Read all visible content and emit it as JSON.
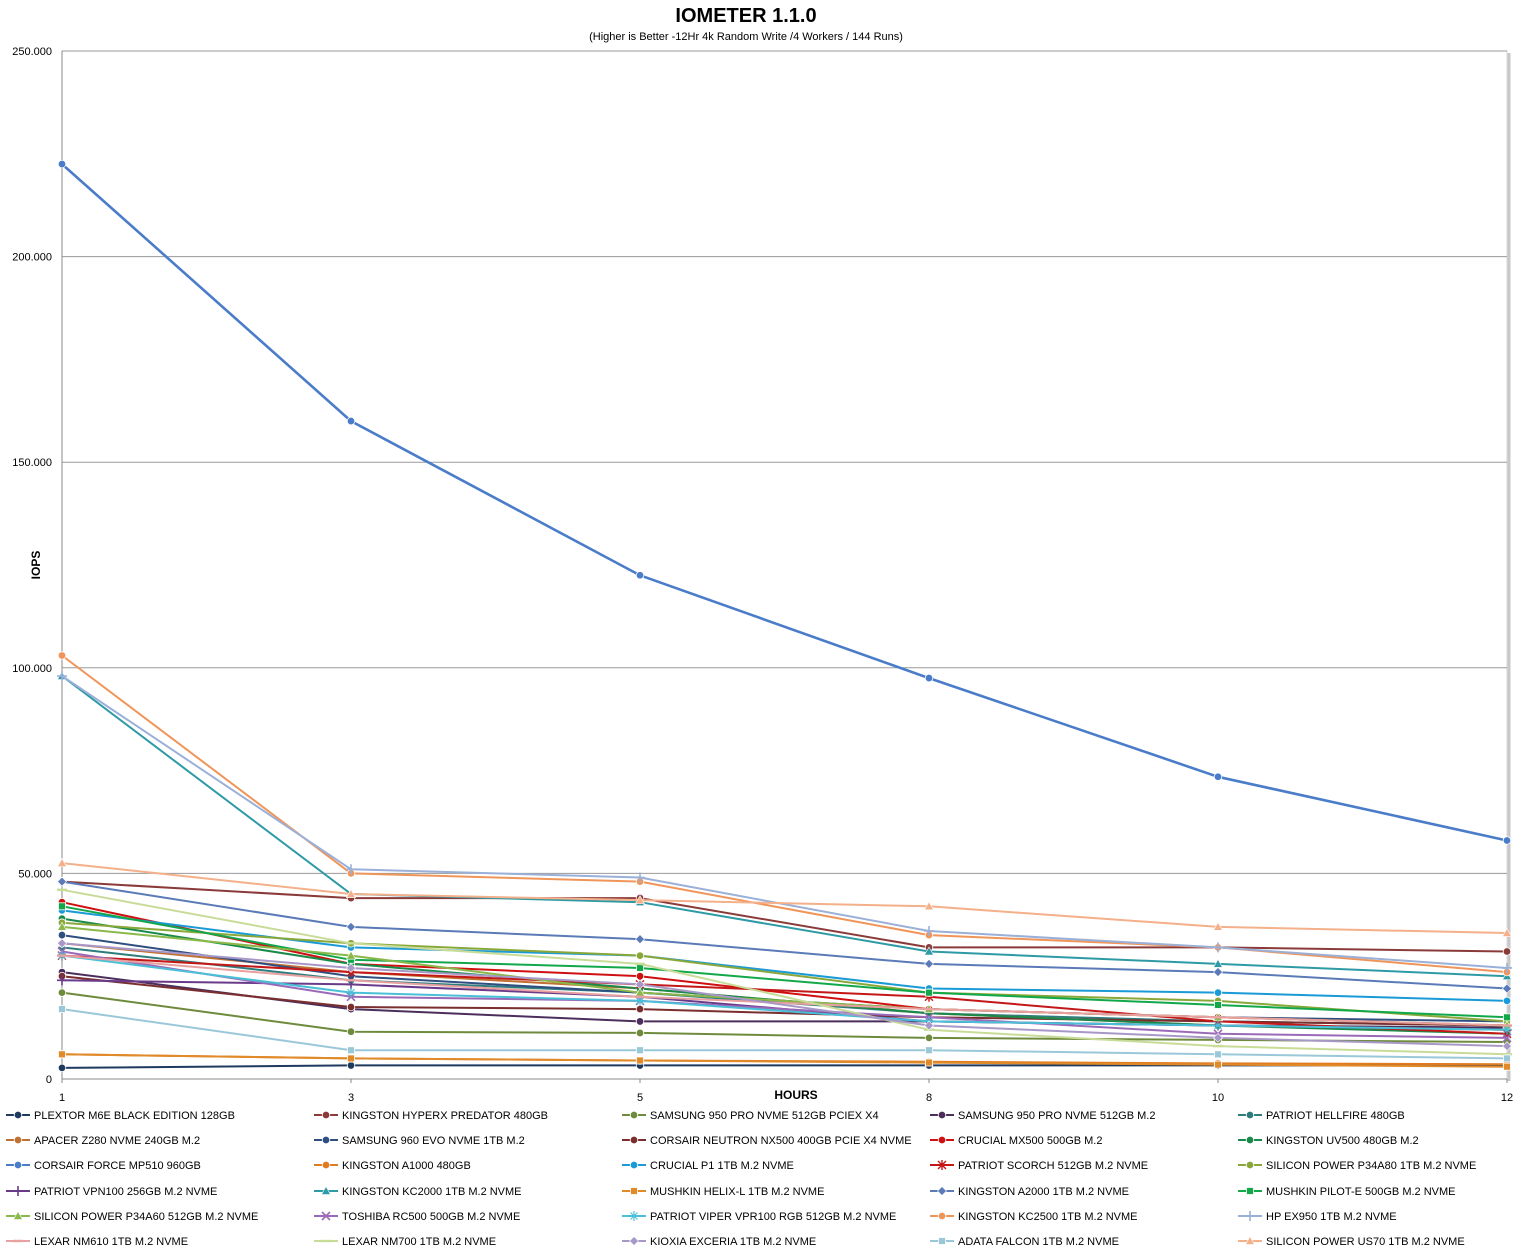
{
  "chart_data": {
    "type": "line",
    "title": "IOMETER 1.1.0",
    "subtitle": "(Higher is Better -12Hr 4k Random Write /4 Workers / 144 Runs)",
    "xlabel": "HOURS",
    "ylabel": "IOPS",
    "x": [
      "1",
      "3",
      "5",
      "8",
      "10",
      "12"
    ],
    "y_ticks": [
      "0",
      "50.000",
      "100.000",
      "150.000",
      "200.000",
      "250.000"
    ],
    "ylim": [
      0,
      250000
    ],
    "grid": "horizontal",
    "legend_position": "bottom",
    "series": [
      {
        "name": "PLEXTOR M6E BLACK EDITION 128GB",
        "color": "#1f3a5f",
        "marker": "circle",
        "values": [
          2700,
          3300,
          3300,
          3300,
          3300,
          3300
        ]
      },
      {
        "name": "KINGSTON HYPERX PREDATOR 480GB",
        "color": "#8b3a3a",
        "marker": "circle",
        "values": [
          48000,
          44000,
          44000,
          32000,
          32000,
          31000
        ]
      },
      {
        "name": "SAMSUNG 950 PRO NVME 512GB PCIEX X4",
        "color": "#6e8b3d",
        "marker": "circle",
        "values": [
          21000,
          11500,
          11200,
          10000,
          9500,
          9000
        ]
      },
      {
        "name": "SAMSUNG 950 PRO NVME 512GB M.2",
        "color": "#4b2e5c",
        "marker": "circle",
        "values": [
          26000,
          17000,
          14000,
          14000,
          13000,
          12500
        ]
      },
      {
        "name": "PATRIOT HELLFIRE 480GB",
        "color": "#2e7d7d",
        "marker": "circle",
        "values": [
          32000,
          24000,
          21000,
          16000,
          14000,
          13000
        ]
      },
      {
        "name": "APACER Z280 NVME 240GB M.2",
        "color": "#c07030",
        "marker": "circle",
        "values": [
          33000,
          26000,
          22000,
          16000,
          13000,
          12000
        ]
      },
      {
        "name": "SAMSUNG 960 EVO NVME 1TB M.2",
        "color": "#2f4f80",
        "marker": "circle",
        "values": [
          35000,
          25000,
          21000,
          17000,
          15000,
          14000
        ]
      },
      {
        "name": "CORSAIR NEUTRON NX500 400GB PCIE X4 NVME",
        "color": "#7a2e2e",
        "marker": "circle",
        "values": [
          25000,
          17500,
          17000,
          15000,
          14000,
          13000
        ]
      },
      {
        "name": "CRUCIAL MX500 500GB M.2",
        "color": "#d01010",
        "marker": "circle",
        "values": [
          43000,
          28000,
          25000,
          17000,
          15000,
          13000
        ]
      },
      {
        "name": "KINGSTON UV500 480GB M.2",
        "color": "#1a8a4a",
        "marker": "circle",
        "values": [
          39000,
          28000,
          22000,
          16000,
          13000,
          11000
        ]
      },
      {
        "name": "CORSAIR FORCE MP510 960GB",
        "color": "#4a7cc9",
        "marker": "circle",
        "values": [
          222500,
          160000,
          122500,
          97500,
          73500,
          58000
        ]
      },
      {
        "name": "KINGSTON A1000 480GB",
        "color": "#e07b20",
        "marker": "circle",
        "values": [
          6000,
          5000,
          4500,
          4200,
          3800,
          3600
        ]
      },
      {
        "name": "CRUCIAL P1 1TB M.2 NVME",
        "color": "#1a9ad6",
        "marker": "circle",
        "values": [
          41000,
          32000,
          30000,
          22000,
          21000,
          19000
        ]
      },
      {
        "name": "PATRIOT SCORCH 512GB M.2 NVME",
        "color": "#c41818",
        "marker": "asterisk",
        "values": [
          30000,
          26000,
          23000,
          20000,
          14000,
          11000
        ]
      },
      {
        "name": "SILICON POWER P34A80 1TB M.2 NVME",
        "color": "#8aa83a",
        "marker": "circle",
        "values": [
          38000,
          33000,
          30000,
          21000,
          19000,
          14000
        ]
      },
      {
        "name": "PATRIOT VPN100 256GB M.2 NVME",
        "color": "#6a3a8a",
        "marker": "plus",
        "values": [
          24000,
          23000,
          20000,
          14000,
          13000,
          12000
        ]
      },
      {
        "name": "KINGSTON KC2000 1TB M.2 NVME",
        "color": "#2e9aa6",
        "marker": "triangle",
        "values": [
          98000,
          45000,
          43000,
          31000,
          28000,
          25000
        ]
      },
      {
        "name": "MUSHKIN HELIX-L 1TB M.2 NVME",
        "color": "#e08a2a",
        "marker": "square",
        "values": [
          6000,
          5000,
          4500,
          4000,
          3500,
          3000
        ]
      },
      {
        "name": "KINGSTON A2000 1TB M.2 NVME",
        "color": "#5a7ab8",
        "marker": "diamond",
        "values": [
          48000,
          37000,
          34000,
          28000,
          26000,
          22000
        ]
      },
      {
        "name": "MUSHKIN PILOT-E 500GB M.2 NVME",
        "color": "#12a84a",
        "marker": "square",
        "values": [
          42000,
          29000,
          27000,
          21000,
          18000,
          15000
        ]
      },
      {
        "name": "SILICON POWER P34A60 512GB M.2 NVME",
        "color": "#8ab84a",
        "marker": "triangle",
        "values": [
          37000,
          30000,
          21000,
          17000,
          15000,
          13000
        ]
      },
      {
        "name": "TOSHIBA RC500 500GB M.2 NVME",
        "color": "#9a6ab8",
        "marker": "x",
        "values": [
          31000,
          20000,
          19000,
          15000,
          11000,
          10000
        ]
      },
      {
        "name": "PATRIOT VIPER VPR100 RGB 512GB M.2 NVME",
        "color": "#4ac0d8",
        "marker": "star",
        "values": [
          30000,
          21000,
          19000,
          14000,
          13000,
          12000
        ]
      },
      {
        "name": "KINGSTON KC2500 1TB M.2 NVME",
        "color": "#f0955a",
        "marker": "circle",
        "values": [
          103000,
          50000,
          48000,
          35000,
          32000,
          26000
        ]
      },
      {
        "name": "HP EX950 1TB M.2 NVME",
        "color": "#9ab0d8",
        "marker": "plus",
        "values": [
          98000,
          51000,
          49000,
          36000,
          32000,
          27000
        ]
      },
      {
        "name": "LEXAR NM610 1TB M.2 NVME",
        "color": "#e8a0a0",
        "marker": "dash",
        "values": [
          30000,
          24000,
          20000,
          17000,
          15000,
          13000
        ]
      },
      {
        "name": "LEXAR NM700 1TB M.2 NVME",
        "color": "#c8dc98",
        "marker": "dash",
        "values": [
          46000,
          33000,
          28000,
          12000,
          8000,
          6000
        ]
      },
      {
        "name": "KIOXIA EXCERIA 1TB M.2 NVME",
        "color": "#a898c8",
        "marker": "diamond",
        "values": [
          33000,
          27000,
          23000,
          13000,
          10000,
          8000
        ]
      },
      {
        "name": "ADATA FALCON 1TB M.2 NVME",
        "color": "#9ac8d8",
        "marker": "square",
        "values": [
          17000,
          7000,
          7000,
          7000,
          6000,
          5000
        ]
      },
      {
        "name": "SILICON POWER US70 1TB M.2 NVME",
        "color": "#f4b08a",
        "marker": "triangle",
        "values": [
          52500,
          45000,
          43500,
          42000,
          37000,
          35500
        ]
      }
    ]
  }
}
